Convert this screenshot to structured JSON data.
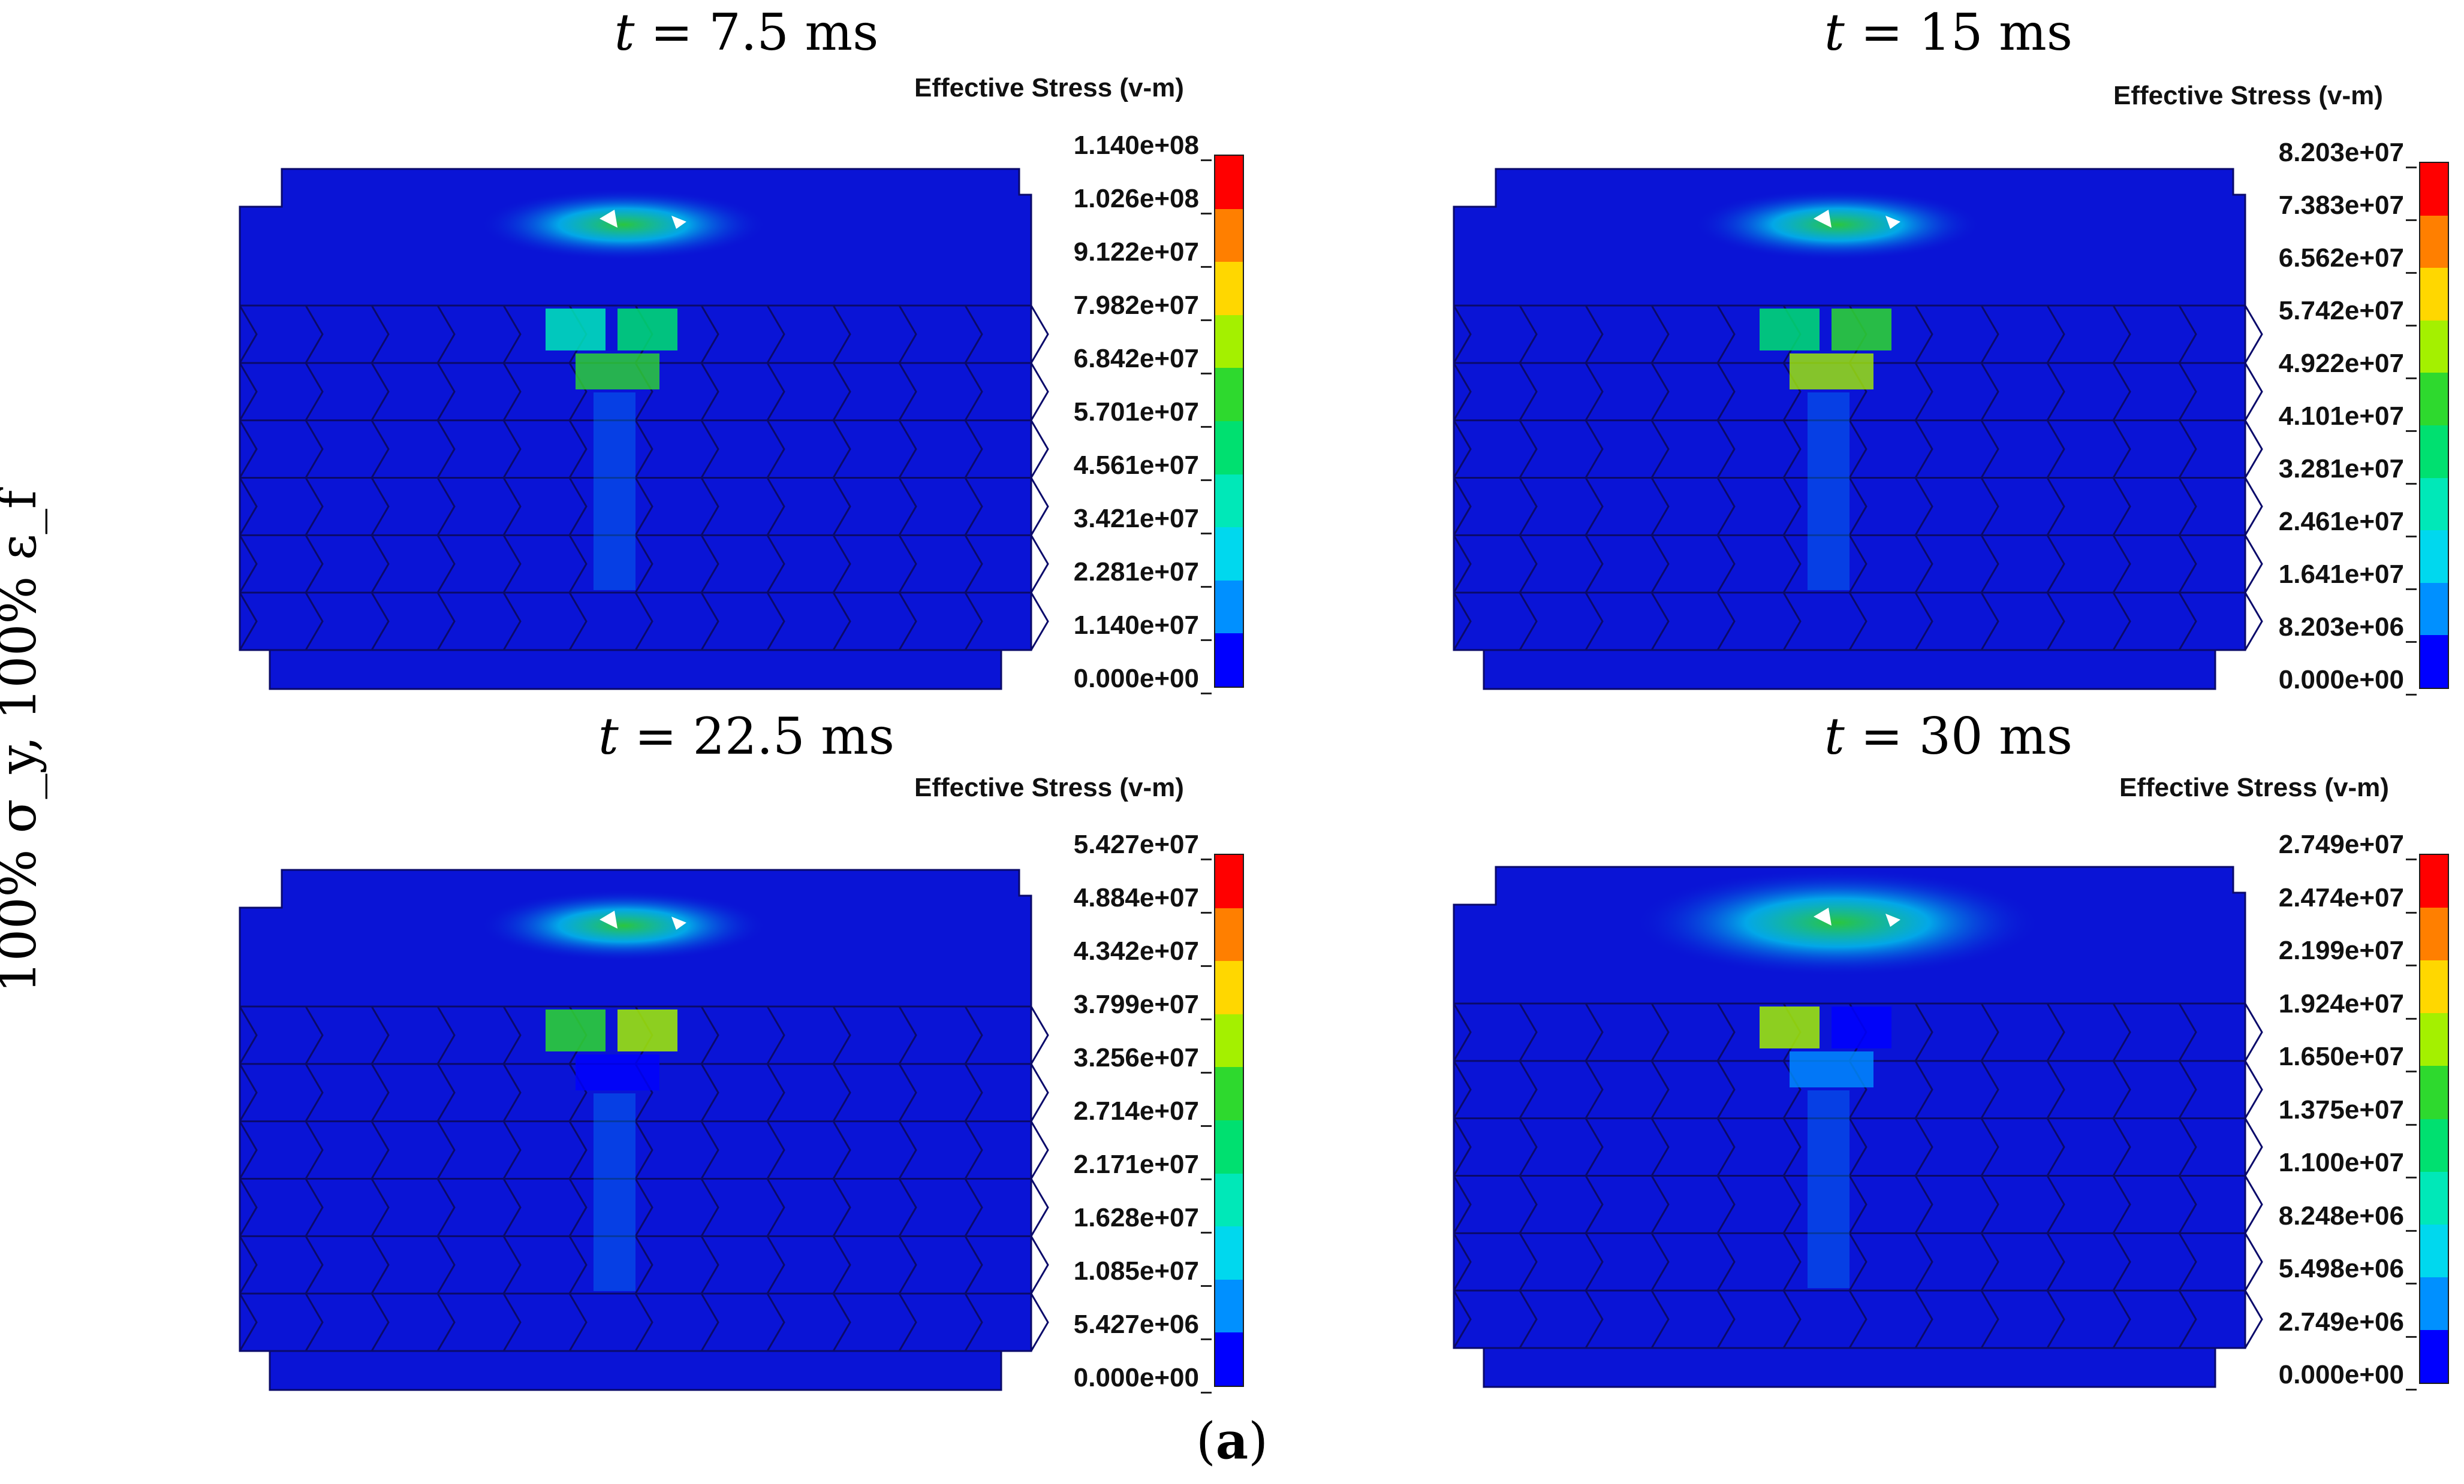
{
  "figure": {
    "side_label": "100% σ_y, 100% ε_f",
    "panel_letter": "a"
  },
  "panels": [
    {
      "title": "t = 7.5 ms",
      "legend_title": "Effective Stress (v-m)",
      "ticks": [
        "1.140e+08",
        "1.026e+08",
        "9.122e+07",
        "7.982e+07",
        "6.842e+07",
        "5.701e+07",
        "4.561e+07",
        "3.421e+07",
        "2.281e+07",
        "1.140e+07",
        "0.000e+00"
      ]
    },
    {
      "title": "t = 15 ms",
      "legend_title": "Effective Stress (v-m)",
      "ticks": [
        "8.203e+07",
        "7.383e+07",
        "6.562e+07",
        "5.742e+07",
        "4.922e+07",
        "4.101e+07",
        "3.281e+07",
        "2.461e+07",
        "1.641e+07",
        "8.203e+06",
        "0.000e+00"
      ]
    },
    {
      "title": "t = 22.5 ms",
      "legend_title": "Effective Stress (v-m)",
      "ticks": [
        "5.427e+07",
        "4.884e+07",
        "4.342e+07",
        "3.799e+07",
        "3.256e+07",
        "2.714e+07",
        "2.171e+07",
        "1.628e+07",
        "1.085e+07",
        "5.427e+06",
        "0.000e+00"
      ]
    },
    {
      "title": "t = 30 ms",
      "legend_title": "Effective Stress (v-m)",
      "ticks": [
        "2.749e+07",
        "2.474e+07",
        "2.199e+07",
        "1.924e+07",
        "1.650e+07",
        "1.375e+07",
        "1.100e+07",
        "8.248e+06",
        "5.498e+06",
        "2.749e+06",
        "0.000e+00"
      ]
    }
  ],
  "colormap": [
    "#ff0000",
    "#ff7f00",
    "#ffd700",
    "#a4f000",
    "#2ed92e",
    "#00e070",
    "#00e8b8",
    "#00d8ee",
    "#0090ff",
    "#0000ff"
  ],
  "colors": {
    "model_base": "#0a14d6",
    "model_edge": "#0a0a6a"
  }
}
